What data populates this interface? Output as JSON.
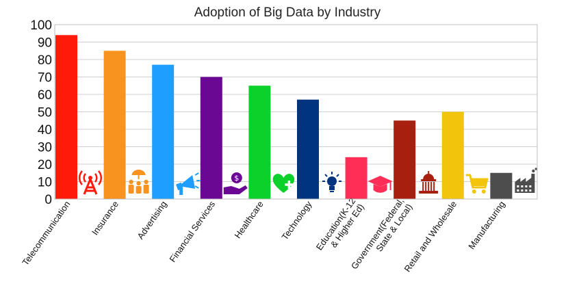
{
  "chart_data": {
    "type": "bar",
    "title": "Adoption of Big Data by Industry",
    "xlabel": "",
    "ylabel": "",
    "ylim": [
      0,
      100
    ],
    "yticks": [
      0,
      10,
      20,
      30,
      40,
      50,
      60,
      70,
      80,
      90,
      100
    ],
    "grid": true,
    "legend": "none",
    "categories": [
      "Telecommunication",
      "Insurance",
      "Advertising",
      "Financial Services",
      "Healthcare",
      "Technology",
      "Education(K-12\n& Higher Ed)",
      "Government(Federal,\nState & Local)",
      "Retail and Wholesale",
      "Manufacturing"
    ],
    "values": [
      94,
      85,
      77,
      70,
      65,
      57,
      24,
      45,
      50,
      15
    ],
    "colors": [
      "#ff1a0a",
      "#f7931e",
      "#1e9fff",
      "#6a0894",
      "#0bd12a",
      "#003380",
      "#ff2e56",
      "#a61f0f",
      "#f2c40c",
      "#4d4d4d"
    ],
    "icons": [
      {
        "name": "radio-tower-icon",
        "color": "#ff1a0a"
      },
      {
        "name": "family-umbrella-icon",
        "color": "#f7931e"
      },
      {
        "name": "megaphone-icon",
        "color": "#1e9fff"
      },
      {
        "name": "money-hand-icon",
        "color": "#6a0894"
      },
      {
        "name": "heart-plus-icon",
        "color": "#0bd12a"
      },
      {
        "name": "lightbulb-icon",
        "color": "#003380"
      },
      {
        "name": "graduation-cap-icon",
        "color": "#ff2e56"
      },
      {
        "name": "capitol-building-icon",
        "color": "#a61f0f"
      },
      {
        "name": "shopping-cart-icon",
        "color": "#f2c40c"
      },
      {
        "name": "factory-icon",
        "color": "#4d4d4d"
      }
    ]
  }
}
